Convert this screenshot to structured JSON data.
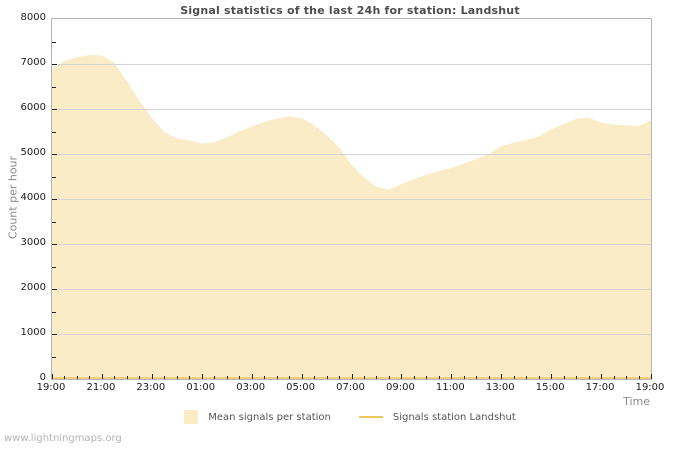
{
  "title": "Signal statistics of the last 24h for station: Landshut",
  "watermark": "www.lightningmaps.org",
  "colors": {
    "area_fill": "#fbecc8",
    "station_line": "#eec85e",
    "gridline": "#d4d4d4",
    "plot_border": "#b6b6b6",
    "title_text": "#4d4d4d",
    "axis_text": "#1c1c1c",
    "axis_label_text": "#8a8a8a"
  },
  "legend": [
    {
      "label": "Mean signals per station",
      "type": "area",
      "color": "#fbecc8"
    },
    {
      "label": "Signals station Landshut",
      "type": "line",
      "color": "#eec85e"
    }
  ],
  "chart_data": {
    "type": "area",
    "title": "Signal statistics of the last 24h for station: Landshut",
    "xlabel": "Time",
    "ylabel": "Count per hour",
    "ylim": [
      0,
      8000
    ],
    "y_major_step": 1000,
    "y_minor_step": 500,
    "x_major_tick_labels": [
      "19:00",
      "21:00",
      "23:00",
      "01:00",
      "03:00",
      "05:00",
      "07:00",
      "09:00",
      "11:00",
      "13:00",
      "15:00",
      "17:00",
      "19:00"
    ],
    "x_minor_interval_minutes": 30,
    "grid": "horizontal",
    "legend_position": "bottom",
    "x": [
      "19:00",
      "19:30",
      "20:00",
      "20:30",
      "21:00",
      "21:30",
      "22:00",
      "22:30",
      "23:00",
      "23:30",
      "00:00",
      "00:30",
      "01:00",
      "01:30",
      "02:00",
      "02:30",
      "03:00",
      "03:30",
      "04:00",
      "04:30",
      "05:00",
      "05:30",
      "06:00",
      "06:30",
      "07:00",
      "07:30",
      "08:00",
      "08:30",
      "09:00",
      "09:30",
      "10:00",
      "10:30",
      "11:00",
      "11:30",
      "12:00",
      "12:30",
      "13:00",
      "13:30",
      "14:00",
      "14:30",
      "15:00",
      "15:30",
      "16:00",
      "16:30",
      "17:00",
      "17:30",
      "18:00",
      "18:30",
      "19:00"
    ],
    "series": [
      {
        "name": "Mean signals per station",
        "type": "area",
        "color": "#fbecc8",
        "values": [
          6900,
          7060,
          7150,
          7200,
          7190,
          7030,
          6620,
          6180,
          5800,
          5490,
          5350,
          5300,
          5230,
          5260,
          5370,
          5500,
          5610,
          5710,
          5790,
          5840,
          5800,
          5640,
          5420,
          5150,
          4760,
          4480,
          4270,
          4210,
          4330,
          4440,
          4540,
          4620,
          4690,
          4790,
          4890,
          5000,
          5170,
          5250,
          5310,
          5390,
          5550,
          5660,
          5780,
          5810,
          5700,
          5650,
          5640,
          5620,
          5750
        ]
      },
      {
        "name": "Signals station Landshut",
        "type": "line",
        "color": "#eec85e",
        "values": [
          0,
          0,
          0,
          0,
          0,
          0,
          0,
          0,
          0,
          0,
          0,
          0,
          0,
          0,
          0,
          0,
          0,
          0,
          0,
          0,
          0,
          0,
          0,
          0,
          0,
          0,
          0,
          0,
          0,
          0,
          0,
          0,
          0,
          0,
          0,
          0,
          0,
          0,
          0,
          0,
          0,
          0,
          0,
          0,
          0,
          0,
          0,
          0,
          0
        ]
      }
    ]
  }
}
